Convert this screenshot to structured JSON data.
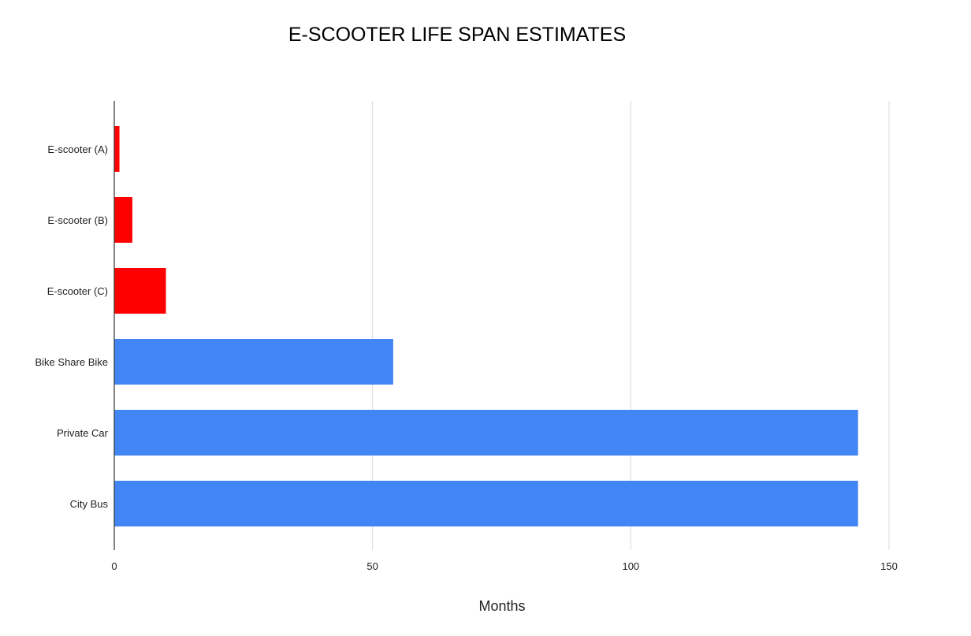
{
  "chart_data": {
    "type": "bar",
    "orientation": "horizontal",
    "title": "E-SCOOTER LIFE SPAN ESTIMATES",
    "xlabel": "Months",
    "ylabel": "",
    "categories": [
      "E-scooter (A)",
      "E-scooter (B)",
      "E-scooter (C)",
      "Bike Share Bike",
      "Private Car",
      "City Bus"
    ],
    "values": [
      1,
      3.5,
      10,
      54,
      144,
      144
    ],
    "bar_colors": [
      "#ff0000",
      "#ff0000",
      "#ff0000",
      "#4285f4",
      "#4285f4",
      "#4285f4"
    ],
    "xlim": [
      0,
      150
    ],
    "x_ticks": [
      0,
      50,
      100,
      150
    ],
    "grid": "vertical",
    "legend": "none"
  },
  "colors": {
    "grid": "#d9d9d9",
    "axis": "#333333",
    "text": "#222222"
  }
}
